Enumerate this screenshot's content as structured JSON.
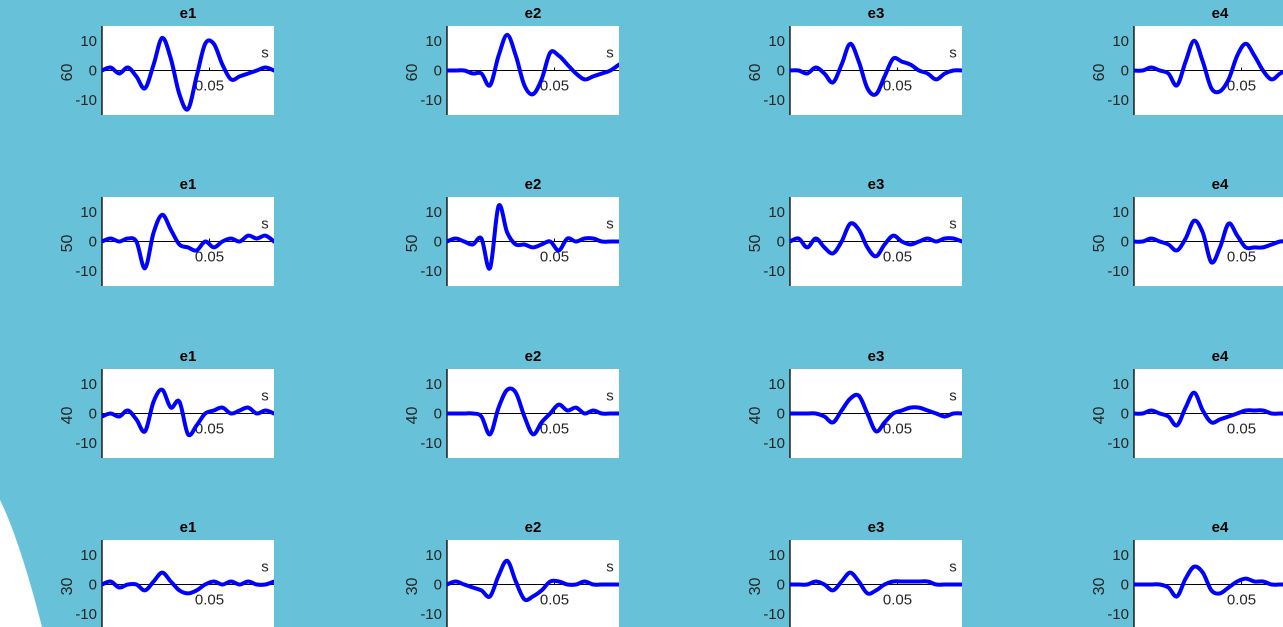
{
  "figure": {
    "background_color": "#67c2d9",
    "page_color": "#ffffff",
    "line_color": "#0000ff",
    "axis_color": "#000000"
  },
  "chart_data": {
    "type": "line",
    "panel_titles": [
      "e1",
      "e2",
      "e3",
      "e4"
    ],
    "row_labels": [
      "60",
      "50",
      "40",
      "30"
    ],
    "x_unit_label": "s",
    "x_tick_label": "0.05",
    "x_tick_value": 0.05,
    "xlim": [
      0,
      0.08
    ],
    "ylim": [
      -15,
      15
    ],
    "y_ticks": [
      10,
      0,
      -10
    ],
    "y_tick_labels": [
      "10",
      "0",
      "-10"
    ],
    "grid": false,
    "legend": "none",
    "panels": [
      {
        "title": "e1",
        "row_label": "60",
        "x": [
          0,
          0.004,
          0.008,
          0.012,
          0.016,
          0.02,
          0.024,
          0.028,
          0.032,
          0.036,
          0.04,
          0.044,
          0.048,
          0.052,
          0.056,
          0.06,
          0.064,
          0.068,
          0.072,
          0.076,
          0.08
        ],
        "y": [
          0,
          1,
          -1,
          1,
          -2,
          -6,
          2,
          11,
          4,
          -8,
          -13,
          -2,
          9,
          9,
          2,
          -3,
          -2,
          -1,
          0,
          1,
          0
        ]
      },
      {
        "title": "e2",
        "row_label": "60",
        "x": [
          0,
          0.004,
          0.008,
          0.012,
          0.016,
          0.02,
          0.024,
          0.028,
          0.032,
          0.036,
          0.04,
          0.044,
          0.048,
          0.052,
          0.056,
          0.06,
          0.064,
          0.068,
          0.072,
          0.076,
          0.08
        ],
        "y": [
          0,
          0,
          0,
          -1,
          -1,
          -5,
          5,
          12,
          5,
          -5,
          -8,
          -3,
          6,
          5,
          2,
          -1,
          -3,
          -2,
          -1,
          0,
          2
        ]
      },
      {
        "title": "e3",
        "row_label": "60",
        "x": [
          0,
          0.004,
          0.008,
          0.012,
          0.016,
          0.02,
          0.024,
          0.028,
          0.032,
          0.036,
          0.04,
          0.044,
          0.048,
          0.052,
          0.056,
          0.06,
          0.064,
          0.068,
          0.072,
          0.076,
          0.08
        ],
        "y": [
          0,
          0,
          -1,
          1,
          -1,
          -4,
          2,
          9,
          3,
          -6,
          -8,
          -2,
          4,
          3,
          2,
          0,
          -1,
          -3,
          -1,
          0,
          0
        ]
      },
      {
        "title": "e4",
        "row_label": "60",
        "x": [
          0,
          0.004,
          0.008,
          0.012,
          0.016,
          0.02,
          0.024,
          0.028,
          0.032,
          0.036,
          0.04,
          0.044,
          0.048,
          0.052,
          0.056,
          0.06,
          0.064,
          0.068,
          0.072,
          0.076,
          0.08
        ],
        "y": [
          0,
          0,
          1,
          0,
          -1,
          -5,
          3,
          10,
          3,
          -6,
          -7,
          -3,
          5,
          9,
          5,
          0,
          -3,
          -1,
          0,
          0,
          0
        ]
      },
      {
        "title": "e1",
        "row_label": "50",
        "x": [
          0,
          0.004,
          0.008,
          0.012,
          0.016,
          0.02,
          0.024,
          0.028,
          0.032,
          0.036,
          0.04,
          0.044,
          0.048,
          0.052,
          0.056,
          0.06,
          0.064,
          0.068,
          0.072,
          0.076,
          0.08
        ],
        "y": [
          0,
          1,
          0,
          1,
          0,
          -9,
          3,
          9,
          4,
          -1,
          -2,
          -3,
          0,
          -2,
          0,
          1,
          0,
          2,
          1,
          2,
          0
        ]
      },
      {
        "title": "e2",
        "row_label": "50",
        "x": [
          0,
          0.004,
          0.008,
          0.012,
          0.016,
          0.02,
          0.024,
          0.028,
          0.032,
          0.036,
          0.04,
          0.044,
          0.048,
          0.052,
          0.056,
          0.06,
          0.064,
          0.068,
          0.072,
          0.076,
          0.08
        ],
        "y": [
          0,
          1,
          0,
          -1,
          1,
          -9,
          12,
          3,
          -1,
          -1,
          -2,
          -1,
          0,
          -3,
          1,
          0,
          1,
          1,
          0,
          0,
          0
        ]
      },
      {
        "title": "e3",
        "row_label": "50",
        "x": [
          0,
          0.004,
          0.008,
          0.012,
          0.016,
          0.02,
          0.024,
          0.028,
          0.032,
          0.036,
          0.04,
          0.044,
          0.048,
          0.052,
          0.056,
          0.06,
          0.064,
          0.068,
          0.072,
          0.076,
          0.08
        ],
        "y": [
          0,
          1,
          -2,
          1,
          -2,
          -4,
          0,
          6,
          4,
          -2,
          -5,
          -1,
          2,
          0,
          -1,
          0,
          1,
          0,
          1,
          1,
          0
        ]
      },
      {
        "title": "e4",
        "row_label": "50",
        "x": [
          0,
          0.004,
          0.008,
          0.012,
          0.016,
          0.02,
          0.024,
          0.028,
          0.032,
          0.036,
          0.04,
          0.044,
          0.048,
          0.052,
          0.056,
          0.06,
          0.064,
          0.068,
          0.072,
          0.076,
          0.08
        ],
        "y": [
          0,
          0,
          1,
          0,
          -1,
          -3,
          1,
          7,
          3,
          -7,
          -2,
          6,
          2,
          -2,
          -2,
          -2,
          -1,
          0,
          0,
          0,
          0
        ]
      },
      {
        "title": "e1",
        "row_label": "40",
        "x": [
          0,
          0.004,
          0.008,
          0.012,
          0.016,
          0.02,
          0.024,
          0.028,
          0.032,
          0.036,
          0.04,
          0.044,
          0.048,
          0.052,
          0.056,
          0.06,
          0.064,
          0.068,
          0.072,
          0.076,
          0.08
        ],
        "y": [
          -1,
          0,
          -1,
          1,
          -2,
          -6,
          4,
          8,
          2,
          4,
          -7,
          -4,
          0,
          1,
          2,
          0,
          1,
          2,
          0,
          1,
          0
        ]
      },
      {
        "title": "e2",
        "row_label": "40",
        "x": [
          0,
          0.004,
          0.008,
          0.012,
          0.016,
          0.02,
          0.024,
          0.028,
          0.032,
          0.036,
          0.04,
          0.044,
          0.048,
          0.052,
          0.056,
          0.06,
          0.064,
          0.068,
          0.072,
          0.076,
          0.08
        ],
        "y": [
          0,
          0,
          0,
          0,
          -1,
          -7,
          2,
          8,
          7,
          -1,
          -7,
          -3,
          0,
          3,
          1,
          2,
          0,
          1,
          0,
          0,
          0
        ]
      },
      {
        "title": "e3",
        "row_label": "40",
        "x": [
          0,
          0.004,
          0.008,
          0.012,
          0.016,
          0.02,
          0.024,
          0.028,
          0.032,
          0.036,
          0.04,
          0.044,
          0.048,
          0.052,
          0.056,
          0.06,
          0.064,
          0.068,
          0.072,
          0.076,
          0.08
        ],
        "y": [
          0,
          0,
          0,
          0,
          -1,
          -3,
          1,
          5,
          6,
          0,
          -6,
          -3,
          0,
          1,
          2,
          2,
          1,
          0,
          -1,
          0,
          0
        ]
      },
      {
        "title": "e4",
        "row_label": "40",
        "x": [
          0,
          0.004,
          0.008,
          0.012,
          0.016,
          0.02,
          0.024,
          0.028,
          0.032,
          0.036,
          0.04,
          0.044,
          0.048,
          0.052,
          0.056,
          0.06,
          0.064,
          0.068,
          0.072,
          0.076,
          0.08
        ],
        "y": [
          0,
          0,
          1,
          0,
          -1,
          -4,
          2,
          7,
          1,
          -3,
          -2,
          -1,
          0,
          1,
          1,
          1,
          0,
          0,
          0,
          0,
          0
        ]
      },
      {
        "title": "e1",
        "row_label": "30",
        "x": [
          0,
          0.004,
          0.008,
          0.012,
          0.016,
          0.02,
          0.024,
          0.028,
          0.032,
          0.036,
          0.04,
          0.044,
          0.048,
          0.052,
          0.056,
          0.06,
          0.064,
          0.068,
          0.072,
          0.076,
          0.08
        ],
        "y": [
          0,
          1,
          -1,
          0,
          0,
          -2,
          1,
          4,
          1,
          -2,
          -3,
          -2,
          0,
          1,
          0,
          1,
          0,
          1,
          0,
          0,
          1
        ]
      },
      {
        "title": "e2",
        "row_label": "30",
        "x": [
          0,
          0.004,
          0.008,
          0.012,
          0.016,
          0.02,
          0.024,
          0.028,
          0.032,
          0.036,
          0.04,
          0.044,
          0.048,
          0.052,
          0.056,
          0.06,
          0.064,
          0.068,
          0.072,
          0.076,
          0.08
        ],
        "y": [
          0,
          1,
          0,
          -1,
          -2,
          -4,
          3,
          8,
          1,
          -5,
          -4,
          -2,
          1,
          1,
          0,
          0,
          1,
          0,
          0,
          0,
          0
        ]
      },
      {
        "title": "e3",
        "row_label": "30",
        "x": [
          0,
          0.004,
          0.008,
          0.012,
          0.016,
          0.02,
          0.024,
          0.028,
          0.032,
          0.036,
          0.04,
          0.044,
          0.048,
          0.052,
          0.056,
          0.06,
          0.064,
          0.068,
          0.072,
          0.076,
          0.08
        ],
        "y": [
          0,
          0,
          0,
          1,
          0,
          -2,
          1,
          4,
          1,
          -3,
          -2,
          0,
          1,
          1,
          1,
          1,
          1,
          0,
          0,
          0,
          0
        ]
      },
      {
        "title": "e4",
        "row_label": "30",
        "x": [
          0,
          0.004,
          0.008,
          0.012,
          0.016,
          0.02,
          0.024,
          0.028,
          0.032,
          0.036,
          0.04,
          0.044,
          0.048,
          0.052,
          0.056,
          0.06,
          0.064,
          0.068,
          0.072,
          0.076,
          0.08
        ],
        "y": [
          0,
          0,
          0,
          0,
          -1,
          -4,
          2,
          6,
          4,
          -2,
          -3,
          -1,
          1,
          2,
          1,
          1,
          0,
          0,
          0,
          0,
          0
        ]
      }
    ]
  }
}
